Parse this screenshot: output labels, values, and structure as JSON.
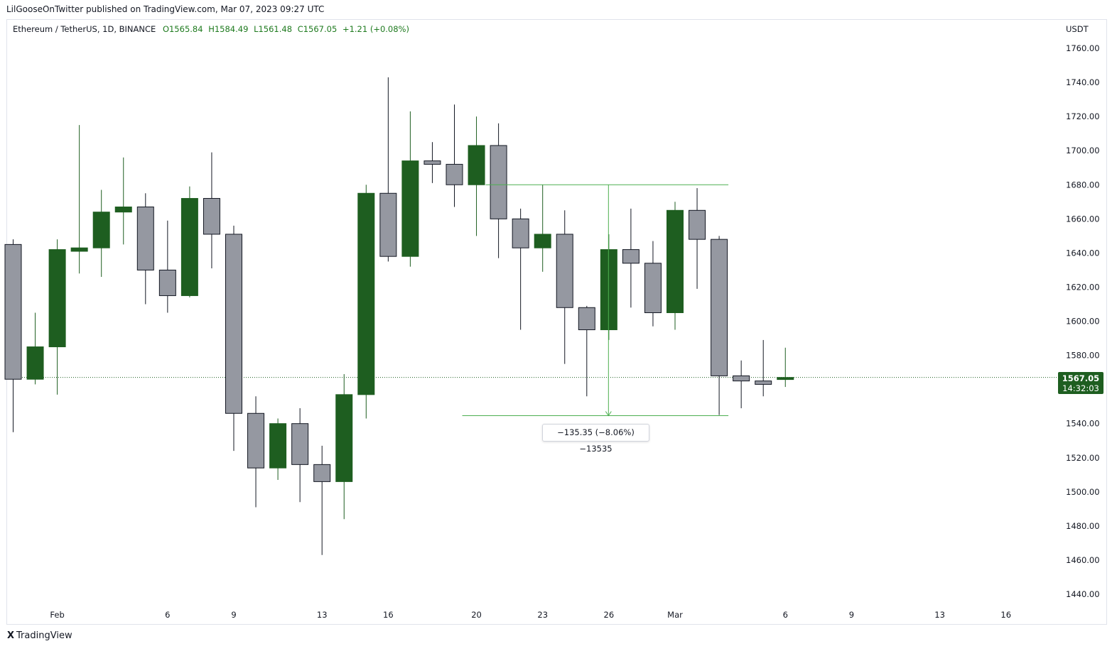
{
  "publisher": "LilGooseOnTwitter published on TradingView.com, Mar 07, 2023 09:27 UTC",
  "symbol": "Ethereum / TetherUS, 1D, BINANCE",
  "ohlc": {
    "open": "O1565.84",
    "high": "H1584.49",
    "low": "L1561.48",
    "close": "C1567.05",
    "change": "+1.21 (+0.08%)"
  },
  "currency": "USDT",
  "last_price": "1567.05",
  "countdown": "14:32:03",
  "measure_label": "−135.35 (−8.06%) −13535",
  "brand": "TradingView",
  "colors": {
    "up": "#1e5e20",
    "down": "#9598a1",
    "outline": "#131722",
    "measure": "#4caf50",
    "price_line": "#1e5e20"
  },
  "chart_data": {
    "type": "candlestick",
    "title": "",
    "xlabel": "",
    "ylabel": "",
    "ylim": [
      1430,
      1770
    ],
    "y_ticks": [
      "1760.00",
      "1740.00",
      "1720.00",
      "1700.00",
      "1680.00",
      "1660.00",
      "1640.00",
      "1620.00",
      "1600.00",
      "1580.00",
      "1560.00",
      "1540.00",
      "1520.00",
      "1500.00",
      "1480.00",
      "1460.00",
      "1440.00"
    ],
    "x_ticks": [
      {
        "label": "Feb",
        "index": 2
      },
      {
        "label": "6",
        "index": 7
      },
      {
        "label": "9",
        "index": 10
      },
      {
        "label": "13",
        "index": 14
      },
      {
        "label": "16",
        "index": 17
      },
      {
        "label": "20",
        "index": 21
      },
      {
        "label": "23",
        "index": 24
      },
      {
        "label": "26",
        "index": 27
      },
      {
        "label": "Mar",
        "index": 30
      },
      {
        "label": "6",
        "index": 35
      },
      {
        "label": "9",
        "index": 38
      },
      {
        "label": "13",
        "index": 42
      },
      {
        "label": "16",
        "index": 45
      }
    ],
    "candles": [
      {
        "date": "Jan 31",
        "o": 1645,
        "h": 1648,
        "l": 1535,
        "c": 1566
      },
      {
        "date": "Feb 01",
        "o": 1566,
        "h": 1605,
        "l": 1563,
        "c": 1585
      },
      {
        "date": "Feb 02",
        "o": 1585,
        "h": 1648,
        "l": 1557,
        "c": 1642
      },
      {
        "date": "Feb 03",
        "o": 1641,
        "h": 1715,
        "l": 1628,
        "c": 1643
      },
      {
        "date": "Feb 04",
        "o": 1643,
        "h": 1677,
        "l": 1626,
        "c": 1664
      },
      {
        "date": "Feb 05",
        "o": 1664,
        "h": 1696,
        "l": 1645,
        "c": 1667
      },
      {
        "date": "Feb 06",
        "o": 1667,
        "h": 1675,
        "l": 1610,
        "c": 1630
      },
      {
        "date": "Feb 07",
        "o": 1630,
        "h": 1659,
        "l": 1605,
        "c": 1615
      },
      {
        "date": "Feb 08",
        "o": 1615,
        "h": 1679,
        "l": 1614,
        "c": 1672
      },
      {
        "date": "Feb 09",
        "o": 1672,
        "h": 1699,
        "l": 1631,
        "c": 1651
      },
      {
        "date": "Feb 10",
        "o": 1651,
        "h": 1656,
        "l": 1524,
        "c": 1546
      },
      {
        "date": "Feb 11",
        "o": 1546,
        "h": 1556,
        "l": 1491,
        "c": 1514
      },
      {
        "date": "Feb 12",
        "o": 1514,
        "h": 1543,
        "l": 1507,
        "c": 1540
      },
      {
        "date": "Feb 13",
        "o": 1540,
        "h": 1549,
        "l": 1494,
        "c": 1516
      },
      {
        "date": "Feb 14",
        "o": 1516,
        "h": 1527,
        "l": 1463,
        "c": 1506
      },
      {
        "date": "Feb 15",
        "o": 1506,
        "h": 1569,
        "l": 1484,
        "c": 1557
      },
      {
        "date": "Feb 16",
        "o": 1557,
        "h": 1680,
        "l": 1543,
        "c": 1675
      },
      {
        "date": "Feb 17",
        "o": 1675,
        "h": 1743,
        "l": 1635,
        "c": 1638
      },
      {
        "date": "Feb 18",
        "o": 1638,
        "h": 1723,
        "l": 1632,
        "c": 1694
      },
      {
        "date": "Feb 19",
        "o": 1694,
        "h": 1705,
        "l": 1681,
        "c": 1692
      },
      {
        "date": "Feb 20",
        "o": 1692,
        "h": 1727,
        "l": 1667,
        "c": 1680
      },
      {
        "date": "Feb 21",
        "o": 1680,
        "h": 1720,
        "l": 1650,
        "c": 1703
      },
      {
        "date": "Feb 22",
        "o": 1703,
        "h": 1716,
        "l": 1637,
        "c": 1660
      },
      {
        "date": "Feb 23",
        "o": 1660,
        "h": 1666,
        "l": 1595,
        "c": 1643
      },
      {
        "date": "Feb 24",
        "o": 1643,
        "h": 1680,
        "l": 1629,
        "c": 1651
      },
      {
        "date": "Feb 25",
        "o": 1651,
        "h": 1665,
        "l": 1575,
        "c": 1608
      },
      {
        "date": "Feb 26",
        "o": 1608,
        "h": 1609,
        "l": 1556,
        "c": 1595
      },
      {
        "date": "Feb 27",
        "o": 1595,
        "h": 1651,
        "l": 1589,
        "c": 1642
      },
      {
        "date": "Feb 28",
        "o": 1642,
        "h": 1666,
        "l": 1608,
        "c": 1634
      },
      {
        "date": "Mar 01",
        "o": 1634,
        "h": 1647,
        "l": 1597,
        "c": 1605
      },
      {
        "date": "Mar 02",
        "o": 1605,
        "h": 1670,
        "l": 1595,
        "c": 1665
      },
      {
        "date": "Mar 03",
        "o": 1665,
        "h": 1678,
        "l": 1619,
        "c": 1648
      },
      {
        "date": "Mar 04",
        "o": 1648,
        "h": 1650,
        "l": 1545,
        "c": 1568
      },
      {
        "date": "Mar 05",
        "o": 1568,
        "h": 1577,
        "l": 1549,
        "c": 1565
      },
      {
        "date": "Mar 06",
        "o": 1565,
        "h": 1589,
        "l": 1556,
        "c": 1563
      },
      {
        "date": "Mar 07",
        "o": 1565.84,
        "h": 1584.49,
        "l": 1561.48,
        "c": 1567.05
      }
    ],
    "last_price": 1567.05,
    "measure": {
      "from_index": 21,
      "to_index": 32,
      "high": 1680.0,
      "low": 1544.65,
      "label": "−135.35 (−8.06%) −13535"
    }
  }
}
